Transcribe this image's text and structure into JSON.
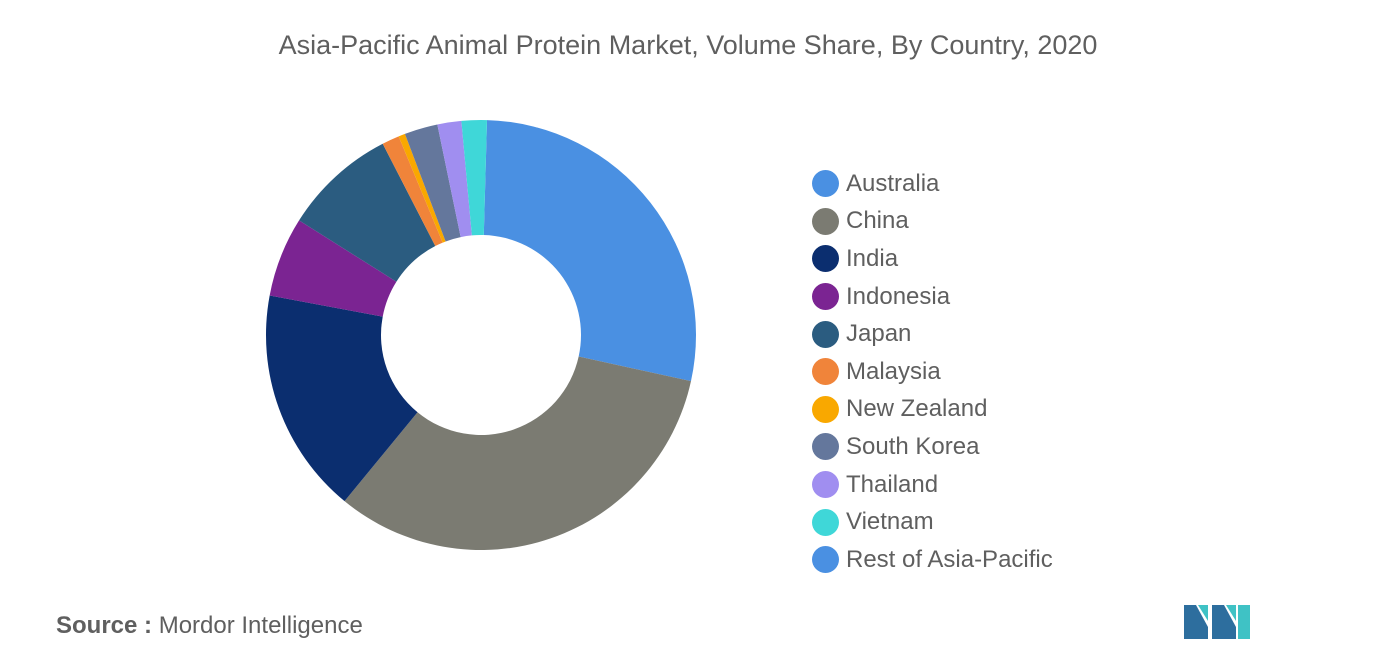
{
  "chart_data": {
    "type": "pie",
    "title": "Asia-Pacific Animal Protein Market, Volume Share, By Country, 2020",
    "donut": true,
    "legend_position": "right",
    "series": [
      {
        "name": "Australia",
        "value": 28.0,
        "color": "#4a90e2"
      },
      {
        "name": "China",
        "value": 32.5,
        "color": "#7b7b72"
      },
      {
        "name": "India",
        "value": 17.0,
        "color": "#0b2e6f"
      },
      {
        "name": "Indonesia",
        "value": 6.0,
        "color": "#7b2492"
      },
      {
        "name": "Japan",
        "value": 8.5,
        "color": "#2b5c80"
      },
      {
        "name": "Malaysia",
        "value": 1.3,
        "color": "#f0843a"
      },
      {
        "name": "New Zealand",
        "value": 0.5,
        "color": "#f9a800"
      },
      {
        "name": "South Korea",
        "value": 2.5,
        "color": "#64779c"
      },
      {
        "name": "Thailand",
        "value": 1.8,
        "color": "#a08ef0"
      },
      {
        "name": "Vietnam",
        "value": 1.9,
        "color": "#3fd7d8"
      },
      {
        "name": "Rest of Asia-Pacific",
        "value": 0.0,
        "color": "#4a90e2"
      }
    ]
  },
  "source": {
    "label": "Source :",
    "text": "Mordor Intelligence"
  },
  "logo": {
    "icon": "mordor-intelligence-logo",
    "colors": [
      "#2d6e9e",
      "#3fc2c5"
    ]
  }
}
